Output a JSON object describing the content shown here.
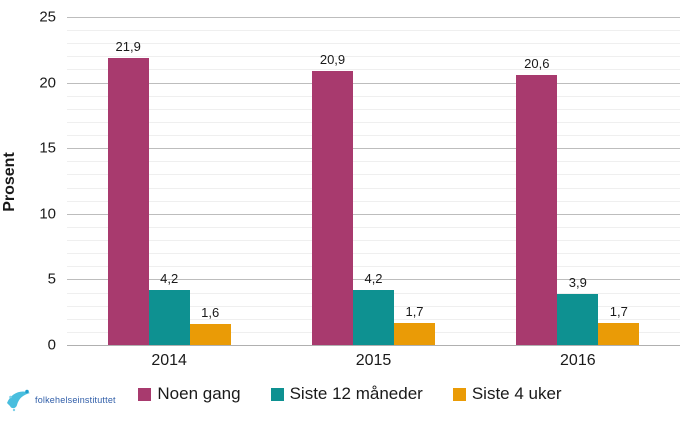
{
  "chart_data": {
    "type": "bar",
    "title": "",
    "ylabel": "Prosent",
    "xlabel": "",
    "categories": [
      "2014",
      "2015",
      "2016"
    ],
    "series": [
      {
        "name": "Noen gang",
        "color": "#A83A6E",
        "values": [
          21.9,
          20.9,
          20.6
        ],
        "labels": [
          "21,9",
          "20,9",
          "20,6"
        ]
      },
      {
        "name": "Siste 12 måneder",
        "color": "#0E9191",
        "values": [
          4.2,
          4.2,
          3.9
        ],
        "labels": [
          "4,2",
          "4,2",
          "3,9"
        ]
      },
      {
        "name": "Siste 4 uker",
        "color": "#EA9B06",
        "values": [
          1.6,
          1.7,
          1.7
        ],
        "labels": [
          "1,6",
          "1,7",
          "1,7"
        ]
      }
    ],
    "ylim": [
      0,
      25
    ],
    "y_major_ticks": [
      0,
      5,
      10,
      15,
      20,
      25
    ],
    "y_minor_step": 1,
    "grid": true,
    "legend_position": "bottom",
    "decimal_separator": ","
  },
  "colors": {
    "minor_grid": "#efefef",
    "major_grid": "#bdbdbd",
    "axis_line": "#b0b0b0",
    "background": "#ffffff",
    "logo_text": "#2f5da8",
    "logo_icon": "#49bede"
  },
  "logo": {
    "text": "folkehelseinstituttet"
  }
}
